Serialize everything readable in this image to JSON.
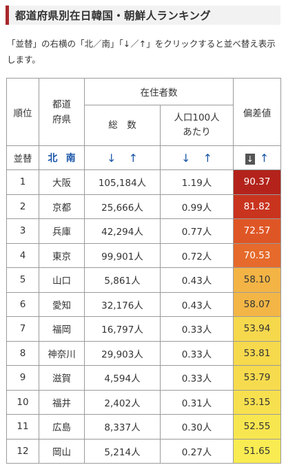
{
  "header": {
    "title": "都道府県別在日韓国・朝鮮人ランキング"
  },
  "description": "「並替」の右横の「北／南」「↓／↑」をクリックすると並べ替え表示します。",
  "table": {
    "col_rank": "順位",
    "col_pref": "都道\n府県",
    "col_residents": "在住者数",
    "col_total": "総　数",
    "col_per100": "人口100人\nあたり",
    "col_deviation": "偏差値",
    "sort_label": "並替",
    "sort_north": "北",
    "sort_south": "南",
    "arrow_down": "↓",
    "arrow_up": "↑",
    "rows": [
      {
        "rank": "1",
        "pref": "大阪",
        "total": "105,184人",
        "per100": "1.19人",
        "dev": "90.37",
        "color": "#b3231b",
        "text_color": "#ffffff"
      },
      {
        "rank": "2",
        "pref": "京都",
        "total": "25,666人",
        "per100": "0.99人",
        "dev": "81.82",
        "color": "#c9341f",
        "text_color": "#ffffff"
      },
      {
        "rank": "3",
        "pref": "兵庫",
        "total": "42,294人",
        "per100": "0.77人",
        "dev": "72.57",
        "color": "#df5626",
        "text_color": "#ffffff"
      },
      {
        "rank": "4",
        "pref": "東京",
        "total": "99,901人",
        "per100": "0.72人",
        "dev": "70.53",
        "color": "#e56a2b",
        "text_color": "#ffffff"
      },
      {
        "rank": "5",
        "pref": "山口",
        "total": "5,861人",
        "per100": "0.43人",
        "dev": "58.10",
        "color": "#f3b445",
        "text_color": "#333333"
      },
      {
        "rank": "6",
        "pref": "愛知",
        "total": "32,176人",
        "per100": "0.43人",
        "dev": "58.07",
        "color": "#f3b646",
        "text_color": "#333333"
      },
      {
        "rank": "7",
        "pref": "福岡",
        "total": "16,797人",
        "per100": "0.33人",
        "dev": "53.94",
        "color": "#f6d84d",
        "text_color": "#333333"
      },
      {
        "rank": "8",
        "pref": "神奈川",
        "total": "29,903人",
        "per100": "0.33人",
        "dev": "53.81",
        "color": "#f6d94d",
        "text_color": "#333333"
      },
      {
        "rank": "9",
        "pref": "滋賀",
        "total": "4,594人",
        "per100": "0.33人",
        "dev": "53.79",
        "color": "#f7db4e",
        "text_color": "#333333"
      },
      {
        "rank": "10",
        "pref": "福井",
        "total": "2,402人",
        "per100": "0.31人",
        "dev": "53.15",
        "color": "#f7e04f",
        "text_color": "#333333"
      },
      {
        "rank": "11",
        "pref": "広島",
        "total": "8,337人",
        "per100": "0.30人",
        "dev": "52.55",
        "color": "#f8e650",
        "text_color": "#333333"
      },
      {
        "rank": "12",
        "pref": "岡山",
        "total": "5,214人",
        "per100": "0.27人",
        "dev": "51.65",
        "color": "#f9ec52",
        "text_color": "#333333"
      }
    ]
  }
}
